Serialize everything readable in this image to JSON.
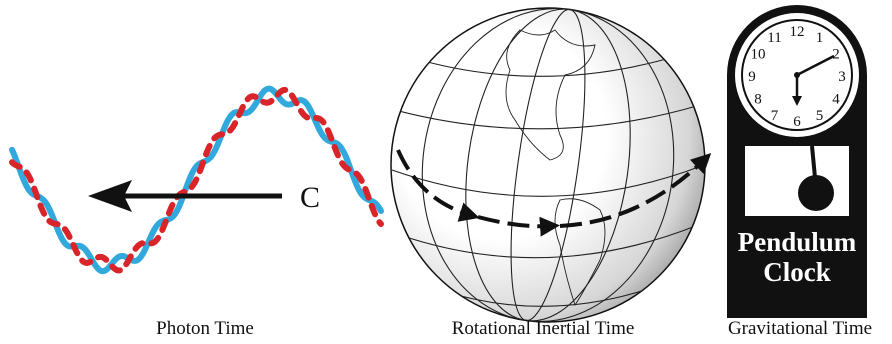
{
  "photon": {
    "label": "C",
    "caption": "Photon Time"
  },
  "globe": {
    "caption": "Rotational Inertial Time"
  },
  "clock": {
    "numbers": [
      "1",
      "2",
      "3",
      "4",
      "5",
      "6",
      "7",
      "8",
      "9",
      "10",
      "11",
      "12"
    ],
    "line1": "Pendulum",
    "line2": "Clock",
    "caption": "Gravitational Time"
  }
}
